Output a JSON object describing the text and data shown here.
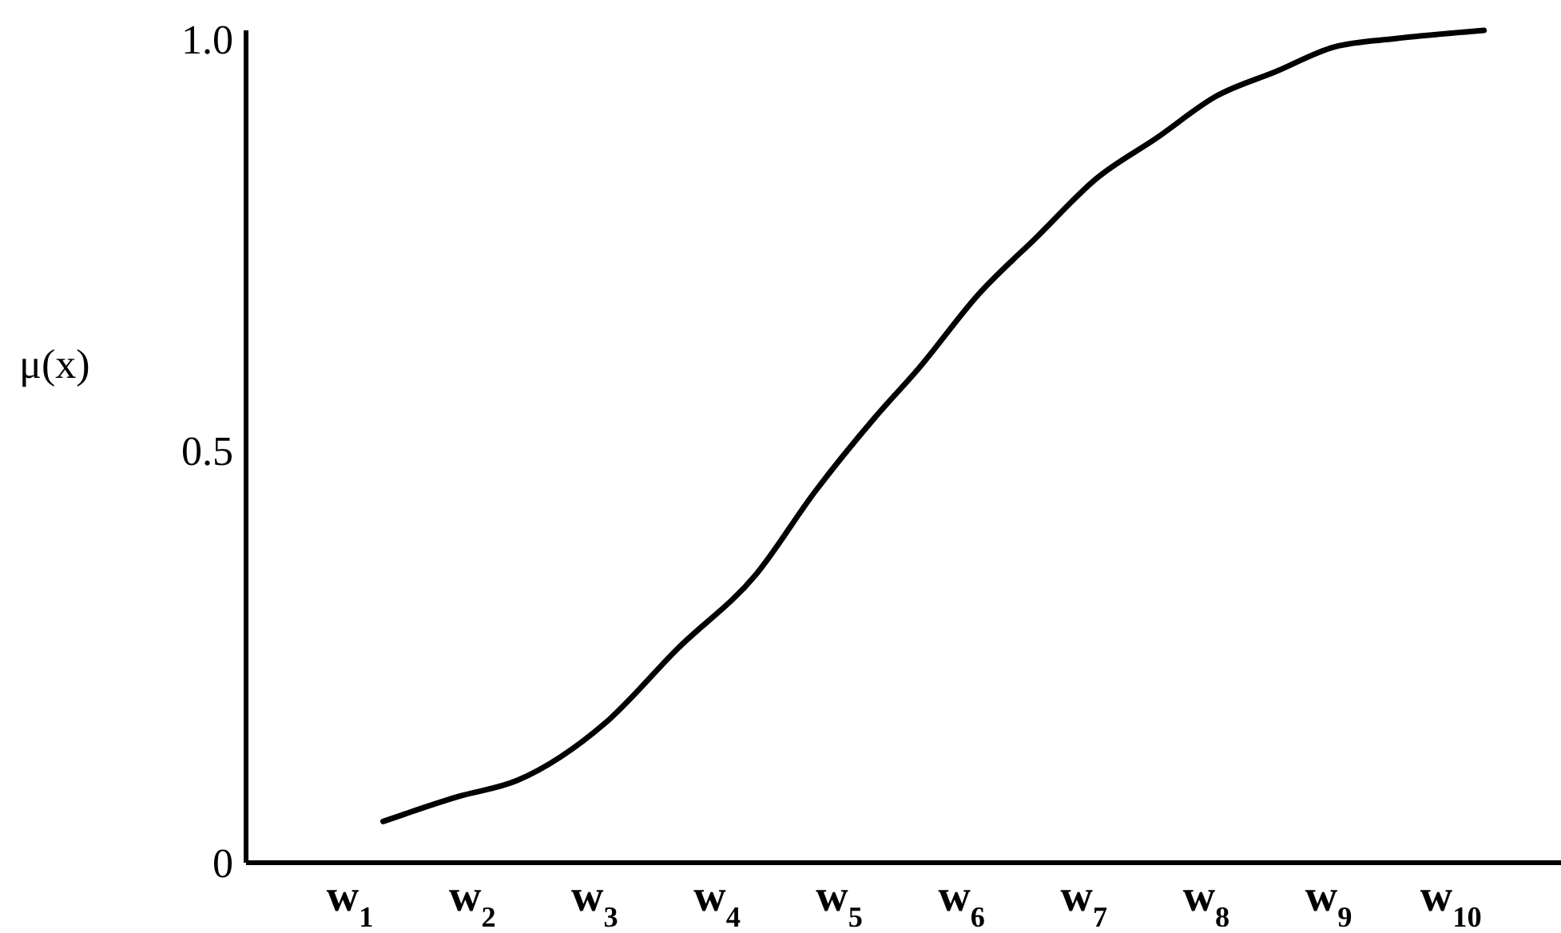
{
  "chart_data": {
    "type": "line",
    "ylabel": "μ(x)",
    "series": [
      {
        "color": "#000000",
        "x": [
          1.27,
          1.88,
          2.37,
          3.09,
          3.68,
          4.32,
          4.8,
          5.29,
          5.65,
          6.14,
          6.62,
          7.1,
          7.6,
          8.08,
          8.57,
          9.05,
          9.55,
          10.27
        ],
        "values": [
          0.05,
          0.08,
          0.1,
          0.17,
          0.26,
          0.35,
          0.45,
          0.54,
          0.6,
          0.69,
          0.76,
          0.83,
          0.88,
          0.93,
          0.96,
          0.99,
          1.0,
          1.01
        ]
      }
    ],
    "xlim": [
      0.15,
      10.9
    ],
    "ylim": [
      0,
      1.01
    ],
    "xticks": [
      {
        "value": 1,
        "label": "w$_{1}$"
      },
      {
        "value": 2,
        "label": "w$_{2}$"
      },
      {
        "value": 3,
        "label": "w$_{3}$"
      },
      {
        "value": 4,
        "label": "w$_{4}$"
      },
      {
        "value": 5,
        "label": "w$_{5}$"
      },
      {
        "value": 6,
        "label": "w$_{6}$"
      },
      {
        "value": 7,
        "label": "w$_{7}$"
      },
      {
        "value": 8,
        "label": "w$_{8}$"
      },
      {
        "value": 9,
        "label": "w$_{9}$"
      },
      {
        "value": 10,
        "label": "w$_{10}$"
      }
    ],
    "yticks": [
      0,
      0.5,
      {
        "value": 1,
        "label": "1.0"
      }
    ],
    "marker": "none",
    "line_style": "solid"
  }
}
